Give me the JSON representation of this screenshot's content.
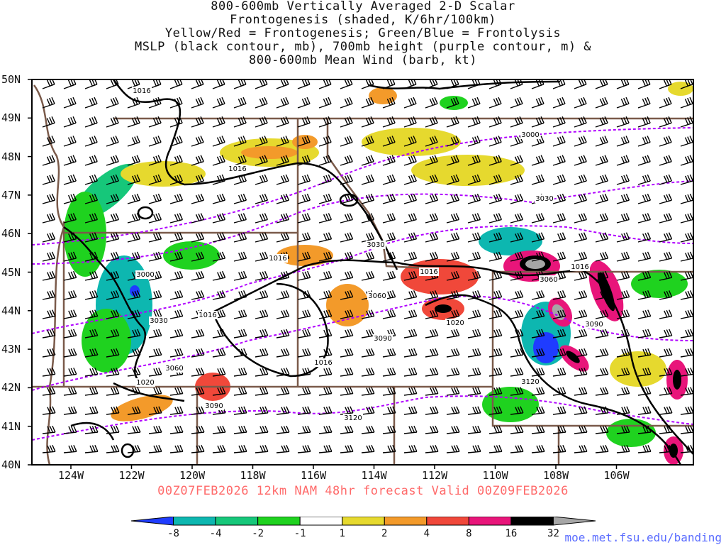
{
  "title_lines": [
    "800-600mb Vertically Averaged 2-D Scalar",
    "Frontogenesis (shaded, K/6hr/100km)",
    "Yellow/Red = Frontogenesis;  Green/Blue = Frontolysis",
    "MSLP (black contour, mb), 700mb height (purple contour, m) &",
    "800-600mb Mean Wind (barb, kt)"
  ],
  "valid_text": "00Z07FEB2026 12km NAM 48hr forecast Valid 00Z09FEB2026",
  "credit": "moe.met.fsu.edu/banding",
  "axes": {
    "lat_labels": [
      "50N",
      "49N",
      "48N",
      "47N",
      "46N",
      "45N",
      "44N",
      "43N",
      "42N",
      "41N",
      "40N"
    ],
    "lon_labels": [
      "124W",
      "122W",
      "120W",
      "118W",
      "116W",
      "114W",
      "112W",
      "110W",
      "108W",
      "106W"
    ]
  },
  "colorbar": {
    "ticks": [
      "-8",
      "-4",
      "-2",
      "-1",
      "1",
      "2",
      "4",
      "8",
      "16",
      "32"
    ],
    "colors": [
      "#1f3cff",
      "#0db7b0",
      "#16c77a",
      "#1fd21f",
      "#ffffff",
      "#e6d92e",
      "#f39a2a",
      "#f0483a",
      "#e8157a",
      "#000000",
      "#a6a6a6"
    ]
  },
  "mslp_labels": [
    "1016",
    "1016",
    "1016",
    "1016",
    "1016",
    "1016",
    "1016",
    "1020",
    "1020"
  ],
  "height_labels": [
    "3000",
    "3000",
    "3030",
    "3030",
    "3030",
    "3060",
    "3060",
    "3060",
    "3090",
    "3090",
    "3090",
    "3120",
    "3120"
  ],
  "colors": {
    "mslp": "#000000",
    "height": "#b000ff",
    "borders": "#7a5a4a",
    "barbs": "#000000"
  }
}
